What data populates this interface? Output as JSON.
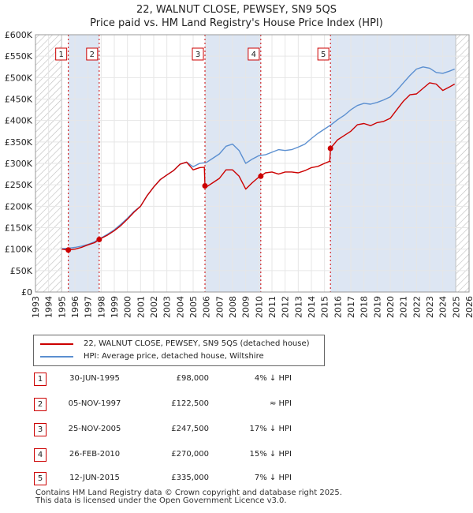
{
  "title": {
    "line1": "22, WALNUT CLOSE, PEWSEY, SN9 5QS",
    "line2": "Price paid vs. HM Land Registry's House Price Index (HPI)"
  },
  "colors": {
    "price": "#cc0000",
    "hpi": "#5b8fd0",
    "shade": "#dde6f3",
    "hatch": "#bbbbbb"
  },
  "legend": {
    "price_label": "22, WALNUT CLOSE, PEWSEY, SN9 5QS (detached house)",
    "hpi_label": "HPI: Average price, detached house, Wiltshire"
  },
  "transactions": [
    {
      "n": "1",
      "date": "30-JUN-1995",
      "price": "£98,000",
      "hpi": "4% ↓ HPI"
    },
    {
      "n": "2",
      "date": "05-NOV-1997",
      "price": "£122,500",
      "hpi": "≈ HPI"
    },
    {
      "n": "3",
      "date": "25-NOV-2005",
      "price": "£247,500",
      "hpi": "17% ↓ HPI"
    },
    {
      "n": "4",
      "date": "26-FEB-2010",
      "price": "£270,000",
      "hpi": "15% ↓ HPI"
    },
    {
      "n": "5",
      "date": "12-JUN-2015",
      "price": "£335,000",
      "hpi": "7% ↓ HPI"
    }
  ],
  "footer": {
    "line1": "Contains HM Land Registry data © Crown copyright and database right 2025.",
    "line2": "This data is licensed under the Open Government Licence v3.0."
  },
  "chart_data": {
    "type": "line",
    "title": "22, WALNUT CLOSE, PEWSEY, SN9 5QS — Price paid vs. HM Land Registry's House Price Index (HPI)",
    "xlabel": "",
    "ylabel": "",
    "xlim": [
      1993,
      2026
    ],
    "ylim": [
      0,
      600000
    ],
    "x_ticks": [
      1993,
      1994,
      1995,
      1996,
      1997,
      1998,
      1999,
      2000,
      2001,
      2002,
      2003,
      2004,
      2005,
      2006,
      2007,
      2008,
      2009,
      2010,
      2011,
      2012,
      2013,
      2014,
      2015,
      2016,
      2017,
      2018,
      2019,
      2020,
      2021,
      2022,
      2023,
      2024,
      2025,
      2026
    ],
    "y_ticks": [
      0,
      50000,
      100000,
      150000,
      200000,
      250000,
      300000,
      350000,
      400000,
      450000,
      500000,
      550000,
      600000
    ],
    "y_tick_labels": [
      "£0",
      "£50K",
      "£100K",
      "£150K",
      "£200K",
      "£250K",
      "£300K",
      "£350K",
      "£400K",
      "£450K",
      "£500K",
      "£550K",
      "£600K"
    ],
    "hatched_ranges": [
      [
        1993,
        1995.0
      ],
      [
        2025.0,
        2026
      ]
    ],
    "shaded_ranges": [
      [
        1995.5,
        1997.85
      ],
      [
        2005.9,
        2010.15
      ],
      [
        2015.45,
        2025.0
      ]
    ],
    "events": [
      {
        "label": "1",
        "x": 1995.5,
        "y": 98000
      },
      {
        "label": "2",
        "x": 1997.85,
        "y": 122500
      },
      {
        "label": "3",
        "x": 2005.9,
        "y": 247500
      },
      {
        "label": "4",
        "x": 2010.15,
        "y": 270000
      },
      {
        "label": "5",
        "x": 2015.45,
        "y": 335000
      }
    ],
    "series": [
      {
        "name": "22, WALNUT CLOSE, PEWSEY, SN9 5QS (detached house)",
        "color": "#cc0000",
        "x": [
          1995.0,
          1995.5,
          1996.0,
          1996.5,
          1997.0,
          1997.5,
          1997.85,
          1998.5,
          1999.0,
          1999.5,
          2000.0,
          2000.5,
          2001.0,
          2001.5,
          2002.0,
          2002.5,
          2003.0,
          2003.5,
          2004.0,
          2004.5,
          2005.0,
          2005.5,
          2005.85,
          2005.9,
          2006.0,
          2006.5,
          2007.0,
          2007.5,
          2008.0,
          2008.5,
          2009.0,
          2009.5,
          2010.0,
          2010.15,
          2010.5,
          2011.0,
          2011.5,
          2012.0,
          2012.5,
          2013.0,
          2013.5,
          2014.0,
          2014.5,
          2015.0,
          2015.4,
          2015.45,
          2016.0,
          2016.5,
          2017.0,
          2017.5,
          2018.0,
          2018.5,
          2019.0,
          2019.5,
          2020.0,
          2020.5,
          2021.0,
          2021.5,
          2022.0,
          2022.5,
          2023.0,
          2023.5,
          2024.0,
          2024.5,
          2024.9
        ],
        "values": [
          100000,
          98000,
          100000,
          104000,
          110000,
          115000,
          122500,
          133000,
          143000,
          155000,
          170000,
          186000,
          200000,
          225000,
          245000,
          262000,
          273000,
          283000,
          298000,
          303000,
          285000,
          290000,
          291000,
          247500,
          245000,
          255000,
          265000,
          285000,
          285000,
          270000,
          240000,
          255000,
          268000,
          270000,
          278000,
          280000,
          275000,
          280000,
          280000,
          278000,
          283000,
          290000,
          293000,
          300000,
          305000,
          335000,
          355000,
          365000,
          375000,
          390000,
          393000,
          388000,
          395000,
          398000,
          405000,
          425000,
          445000,
          460000,
          462000,
          475000,
          488000,
          485000,
          470000,
          478000,
          485000
        ]
      },
      {
        "name": "HPI: Average price, detached house, Wiltshire",
        "color": "#5b8fd0",
        "x": [
          1995.0,
          1995.5,
          1996.0,
          1996.5,
          1997.0,
          1997.5,
          1998.0,
          1998.5,
          1999.0,
          1999.5,
          2000.0,
          2000.5,
          2001.0,
          2001.5,
          2002.0,
          2002.5,
          2003.0,
          2003.5,
          2004.0,
          2004.5,
          2005.0,
          2005.5,
          2006.0,
          2006.5,
          2007.0,
          2007.5,
          2008.0,
          2008.5,
          2009.0,
          2009.5,
          2010.0,
          2010.5,
          2011.0,
          2011.5,
          2012.0,
          2012.5,
          2013.0,
          2013.5,
          2014.0,
          2014.5,
          2015.0,
          2015.5,
          2016.0,
          2016.5,
          2017.0,
          2017.5,
          2018.0,
          2018.5,
          2019.0,
          2019.5,
          2020.0,
          2020.5,
          2021.0,
          2021.5,
          2022.0,
          2022.5,
          2023.0,
          2023.5,
          2024.0,
          2024.5,
          2024.9
        ],
        "values": [
          101000,
          102000,
          104000,
          107000,
          111000,
          117000,
          126000,
          135000,
          145000,
          158000,
          172000,
          188000,
          200000,
          225000,
          245000,
          262000,
          273000,
          283000,
          298000,
          303000,
          292000,
          300000,
          302000,
          312000,
          322000,
          340000,
          345000,
          330000,
          300000,
          310000,
          318000,
          320000,
          326000,
          332000,
          330000,
          332000,
          338000,
          345000,
          358000,
          370000,
          380000,
          390000,
          402000,
          412000,
          425000,
          435000,
          440000,
          438000,
          442000,
          448000,
          455000,
          470000,
          488000,
          505000,
          520000,
          525000,
          522000,
          512000,
          510000,
          515000,
          520000
        ]
      }
    ]
  }
}
